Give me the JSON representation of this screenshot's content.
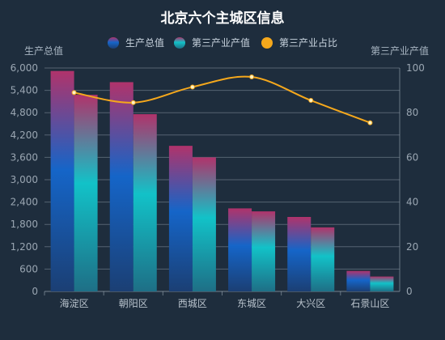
{
  "colors": {
    "background": "#1e2d3d",
    "gdp_top": "#b0336b",
    "gdp_mid": "#1565c8",
    "gdp_bottom": "#1b3f74",
    "tertiary_top": "#b0336b",
    "tertiary_mid": "#12c2c8",
    "tertiary_bottom": "#1e6f86",
    "line": "#f5a81c",
    "grid": "#9aa6b2"
  },
  "chart_data": {
    "type": "bar",
    "title": "北京六个主城区信息",
    "categories": [
      "海淀区",
      "朝阳区",
      "西城区",
      "东城区",
      "大兴区",
      "石景山区"
    ],
    "series": [
      {
        "name": "生产总值",
        "type": "bar",
        "axis": "left",
        "values": [
          5920,
          5620,
          3910,
          2230,
          2000,
          550
        ]
      },
      {
        "name": "第三产业产值",
        "type": "bar",
        "axis": "left",
        "values": [
          5280,
          4760,
          3600,
          2150,
          1720,
          400
        ]
      },
      {
        "name": "第三产业占比",
        "type": "line",
        "axis": "right",
        "values": [
          89,
          84.5,
          91.5,
          96,
          85.5,
          75.5
        ]
      }
    ],
    "ylabel_left": "生产总值",
    "ylabel_right": "第三产业产值",
    "ylim_left": [
      0,
      6000
    ],
    "yticks_left": [
      0,
      600,
      1200,
      1800,
      2400,
      3000,
      3600,
      4200,
      4800,
      5400,
      6000
    ],
    "ylim_right": [
      0,
      100
    ],
    "yticks_right": [
      0,
      20,
      40,
      60,
      80,
      100
    ],
    "legend_position": "top-center",
    "grid": true
  }
}
